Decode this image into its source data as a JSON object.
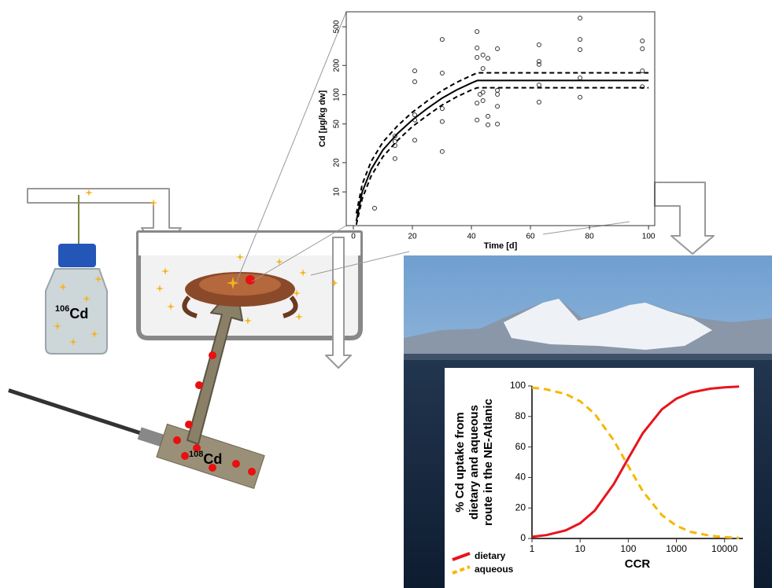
{
  "chart_data": [
    {
      "type": "scatter",
      "xlabel": "Time [d]",
      "ylabel": "Cd [µg/kg dw]",
      "xlim": [
        -2.4,
        102.1
      ],
      "xticks": [
        0,
        20,
        40,
        60,
        80,
        100
      ],
      "ylim": [
        4.5,
        713
      ],
      "yticks": [
        10,
        20,
        50,
        100,
        200,
        500
      ],
      "log_y": true,
      "frame": true,
      "series": [
        {
          "style": "points",
          "color": "#333333",
          "x": [
            7.2,
            14.1,
            14.1,
            14.1,
            14.1,
            20.8,
            20.8,
            20.8,
            20.8,
            20.8,
            30.1,
            30.1,
            30.1,
            30.1,
            30.1,
            41.9,
            41.9,
            41.9,
            41.9,
            41.9,
            42.9,
            43.9,
            43.9,
            43.9,
            43.9,
            45.6,
            45.6,
            45.6,
            48.8,
            48.8,
            48.8,
            48.8,
            48.8,
            62.9,
            62.9,
            62.9,
            62.9,
            62.9,
            76.8,
            76.8,
            76.8,
            76.8,
            76.8,
            97.9,
            97.9,
            97.9,
            97.9
          ],
          "values": [
            6.8,
            22,
            30,
            33,
            37.5,
            136,
            176,
            34,
            62,
            55,
            371,
            167,
            72,
            53,
            26,
            447,
            303,
            242,
            82,
            55,
            101,
            256,
            186,
            106,
            87,
            237,
            60,
            49,
            297,
            111,
            101,
            76,
            50,
            326,
            220,
            205,
            126,
            84,
            614,
            371,
            291,
            149,
            94,
            357,
            297,
            176,
            121
          ]
        },
        {
          "style": "solid",
          "color": "#000000",
          "x": [
            1,
            3,
            6,
            10,
            15,
            20,
            25,
            30,
            35,
            40,
            42,
            100
          ],
          "values": [
            5,
            10,
            17,
            27,
            40,
            55,
            72,
            92,
            112,
            132,
            140,
            140
          ]
        },
        {
          "style": "dashed",
          "color": "#000000",
          "x": [
            1,
            3,
            6,
            10,
            15,
            20,
            25,
            30,
            35,
            40,
            42,
            100
          ],
          "values": [
            6,
            12,
            20.5,
            32.5,
            48,
            66,
            86,
            110,
            134,
            158,
            168,
            168
          ]
        },
        {
          "style": "dashed",
          "color": "#000000",
          "x": [
            1,
            3,
            6,
            10,
            15,
            20,
            25,
            30,
            35,
            40,
            42,
            100
          ],
          "values": [
            4.6,
            8.5,
            14.5,
            23,
            34,
            47,
            61,
            78,
            95,
            112,
            118,
            118
          ]
        }
      ]
    },
    {
      "type": "line",
      "xlabel": "CCR",
      "ylabel": [
        "% Cd uptake from",
        "dietary and aqueous",
        "route in the NE-Atlanic"
      ],
      "xlim": [
        1,
        24000
      ],
      "xticks": [
        1,
        10,
        100,
        1000,
        10000
      ],
      "log_x": true,
      "ylim": [
        0,
        100
      ],
      "yticks": [
        0,
        20,
        40,
        60,
        80,
        100
      ],
      "legend": "bottom-left",
      "x": [
        1,
        2,
        5,
        10,
        20,
        50,
        100,
        200,
        500,
        1000,
        2000,
        5000,
        10000,
        20000
      ],
      "series": [
        {
          "name": "dietary",
          "color": "#e8141c",
          "style": "solid",
          "values": [
            1.1,
            2.2,
            5.3,
            10,
            18.2,
            35.7,
            52.6,
            69,
            84.7,
            91.7,
            95.7,
            98.2,
            99.1,
            99.6
          ]
        },
        {
          "name": "aqueous",
          "color": "#f5b800",
          "style": "dashed",
          "values": [
            98.9,
            97.8,
            94.7,
            90,
            81.8,
            64.3,
            47.4,
            31,
            15.3,
            8.3,
            4.3,
            1.8,
            0.9,
            0.4
          ]
        }
      ]
    }
  ],
  "isotope_labels": [
    {
      "mass": "106",
      "element": "Cd"
    },
    {
      "mass": "108",
      "element": "Cd"
    }
  ]
}
